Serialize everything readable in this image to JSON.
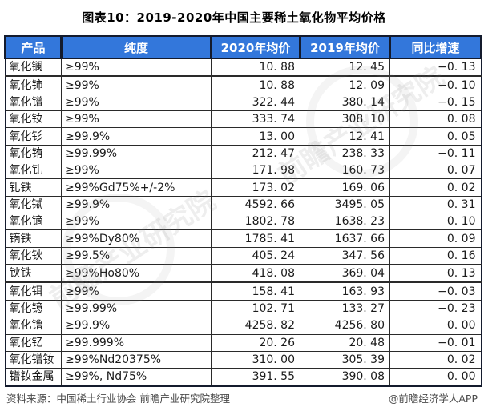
{
  "title": "图表10：2019-2020年中国主要稀土氧化物平均价格",
  "chart_data": {
    "type": "table",
    "title": "图表10：2019-2020年中国主要稀土氧化物平均价格",
    "columns": [
      "产品",
      "纯度",
      "2020年均价",
      "2019年均价",
      "同比增速"
    ],
    "rows": [
      [
        "氧化镧",
        "≥99%",
        "10.88",
        "12.45",
        "-0.13"
      ],
      [
        "氧化铈",
        "≥99%",
        "10.88",
        "12.09",
        "-0.10"
      ],
      [
        "氧化镨",
        "≥99%",
        "322.44",
        "380.14",
        "-0.15"
      ],
      [
        "氧化钕",
        "≥99%",
        "333.74",
        "308.10",
        "0.08"
      ],
      [
        "氧化钐",
        "≥99.9%",
        "13.00",
        "12.41",
        "0.05"
      ],
      [
        "氧化铕",
        "≥99.99%",
        "212.47",
        "238.33",
        "-0.11"
      ],
      [
        "氧化钆",
        "≥99%",
        "171.98",
        "160.73",
        "0.07"
      ],
      [
        "钆铁",
        "≥99%Gd75%+/-2%",
        "173.02",
        "169.06",
        "0.02"
      ],
      [
        "氧化铽",
        "≥99.9%",
        "4592.66",
        "3495.05",
        "0.31"
      ],
      [
        "氧化镝",
        "≥99%",
        "1802.78",
        "1638.23",
        "0.10"
      ],
      [
        "镝铁",
        "≥99%Dy80%",
        "1785.41",
        "1637.66",
        "0.09"
      ],
      [
        "氧化钬",
        "≥99.5%",
        "405.24",
        "347.56",
        "0.16"
      ],
      [
        "钬铁",
        "≥99%Ho80%",
        "418.08",
        "369.04",
        "0.13"
      ],
      [
        "氧化铒",
        "≥99%",
        "158.41",
        "163.93",
        "-0.03"
      ],
      [
        "氧化镱",
        "≥99.99%",
        "102.71",
        "133.27",
        "-0.23"
      ],
      [
        "氧化镥",
        "≥99.9%",
        "4258.82",
        "4256.80",
        "0.00"
      ],
      [
        "氧化钇",
        "≥99.999%",
        "20.26",
        "20.48",
        "-0.01"
      ],
      [
        "氧化镨钕",
        "≥99%Nd20375%",
        "310.00",
        "305.39",
        "0.02"
      ],
      [
        "镨钕金属",
        "≥99%, Nd75%",
        "391.55",
        "390.08",
        "0.00"
      ]
    ]
  },
  "footer": {
    "source": "资料来源：中国稀土行业协会 前瞻产业研究院整理",
    "brand": "@前瞻经济学人APP"
  },
  "watermark": {
    "text": "前瞻产业研究院"
  },
  "colors": {
    "header_bg": "#3377DB",
    "header_text": "#ffffff",
    "header_separator": "#141b2d",
    "body_border": "#2a2a2a",
    "footer_text": "#4a4a4a"
  }
}
